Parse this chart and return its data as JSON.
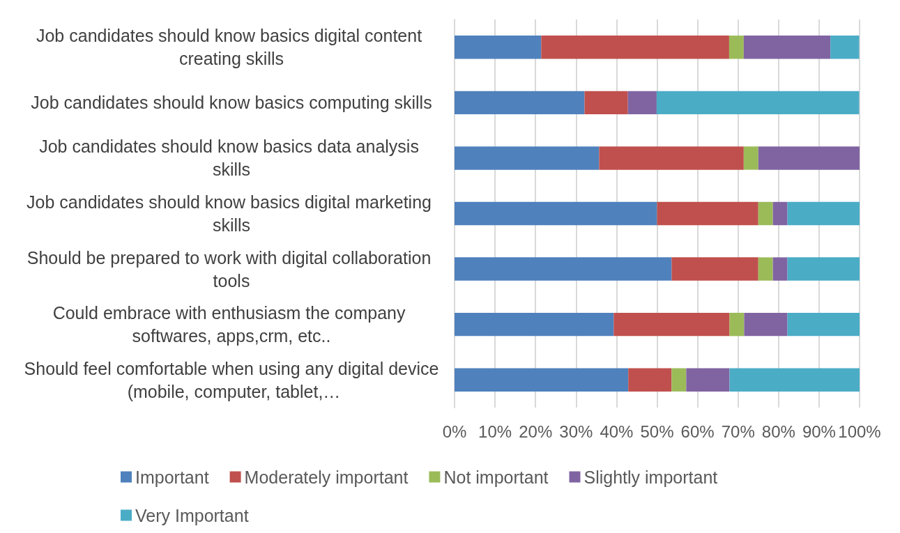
{
  "chart_data": {
    "type": "bar",
    "orientation": "horizontal",
    "stacked": true,
    "categories": [
      "Job candidates should know basics digital content creating skills",
      "Job candidates should know basics computing skills",
      "Job candidates should know basics data analysis skills",
      "Job candidates should know basics digital marketing skills",
      "Should be prepared to work with digital collaboration tools",
      "Could embrace with enthusiasm the company softwares, apps,crm, etc..",
      "Should feel comfortable when using any digital device (mobile, computer, tablet,…"
    ],
    "series": [
      {
        "name": "Important",
        "color": "#4f81bd",
        "values": [
          21.4,
          32.1,
          35.7,
          50,
          53.6,
          39.3,
          42.9
        ]
      },
      {
        "name": "Moderately important",
        "color": "#c0504d",
        "values": [
          46.4,
          10.7,
          35.7,
          25,
          21.4,
          28.6,
          10.7
        ]
      },
      {
        "name": "Not important",
        "color": "#9bbb59",
        "values": [
          3.6,
          null,
          3.6,
          3.6,
          3.6,
          3.6,
          3.6
        ]
      },
      {
        "name": "Slightly important",
        "color": "#8064a2",
        "values": [
          21.4,
          7.1,
          25,
          3.6,
          3.6,
          10.7,
          10.7
        ]
      },
      {
        "name": "Very Important",
        "color": "#4bacc6",
        "values": [
          7.1,
          50,
          null,
          17.9,
          17.9,
          17.9,
          32.1
        ]
      }
    ],
    "xlim": [
      0,
      100
    ],
    "xticks": [
      {
        "value": 0,
        "label": "0%"
      },
      {
        "value": 10,
        "label": "10%"
      },
      {
        "value": 20,
        "label": "20%"
      },
      {
        "value": 30,
        "label": "30%"
      },
      {
        "value": 40,
        "label": "40%"
      },
      {
        "value": 50,
        "label": "50%"
      },
      {
        "value": 60,
        "label": "60%"
      },
      {
        "value": 70,
        "label": "70%"
      },
      {
        "value": 80,
        "label": "80%"
      },
      {
        "value": 90,
        "label": "90%"
      },
      {
        "value": 100,
        "label": "100%"
      }
    ],
    "grid": "x",
    "legend": "bottom"
  }
}
